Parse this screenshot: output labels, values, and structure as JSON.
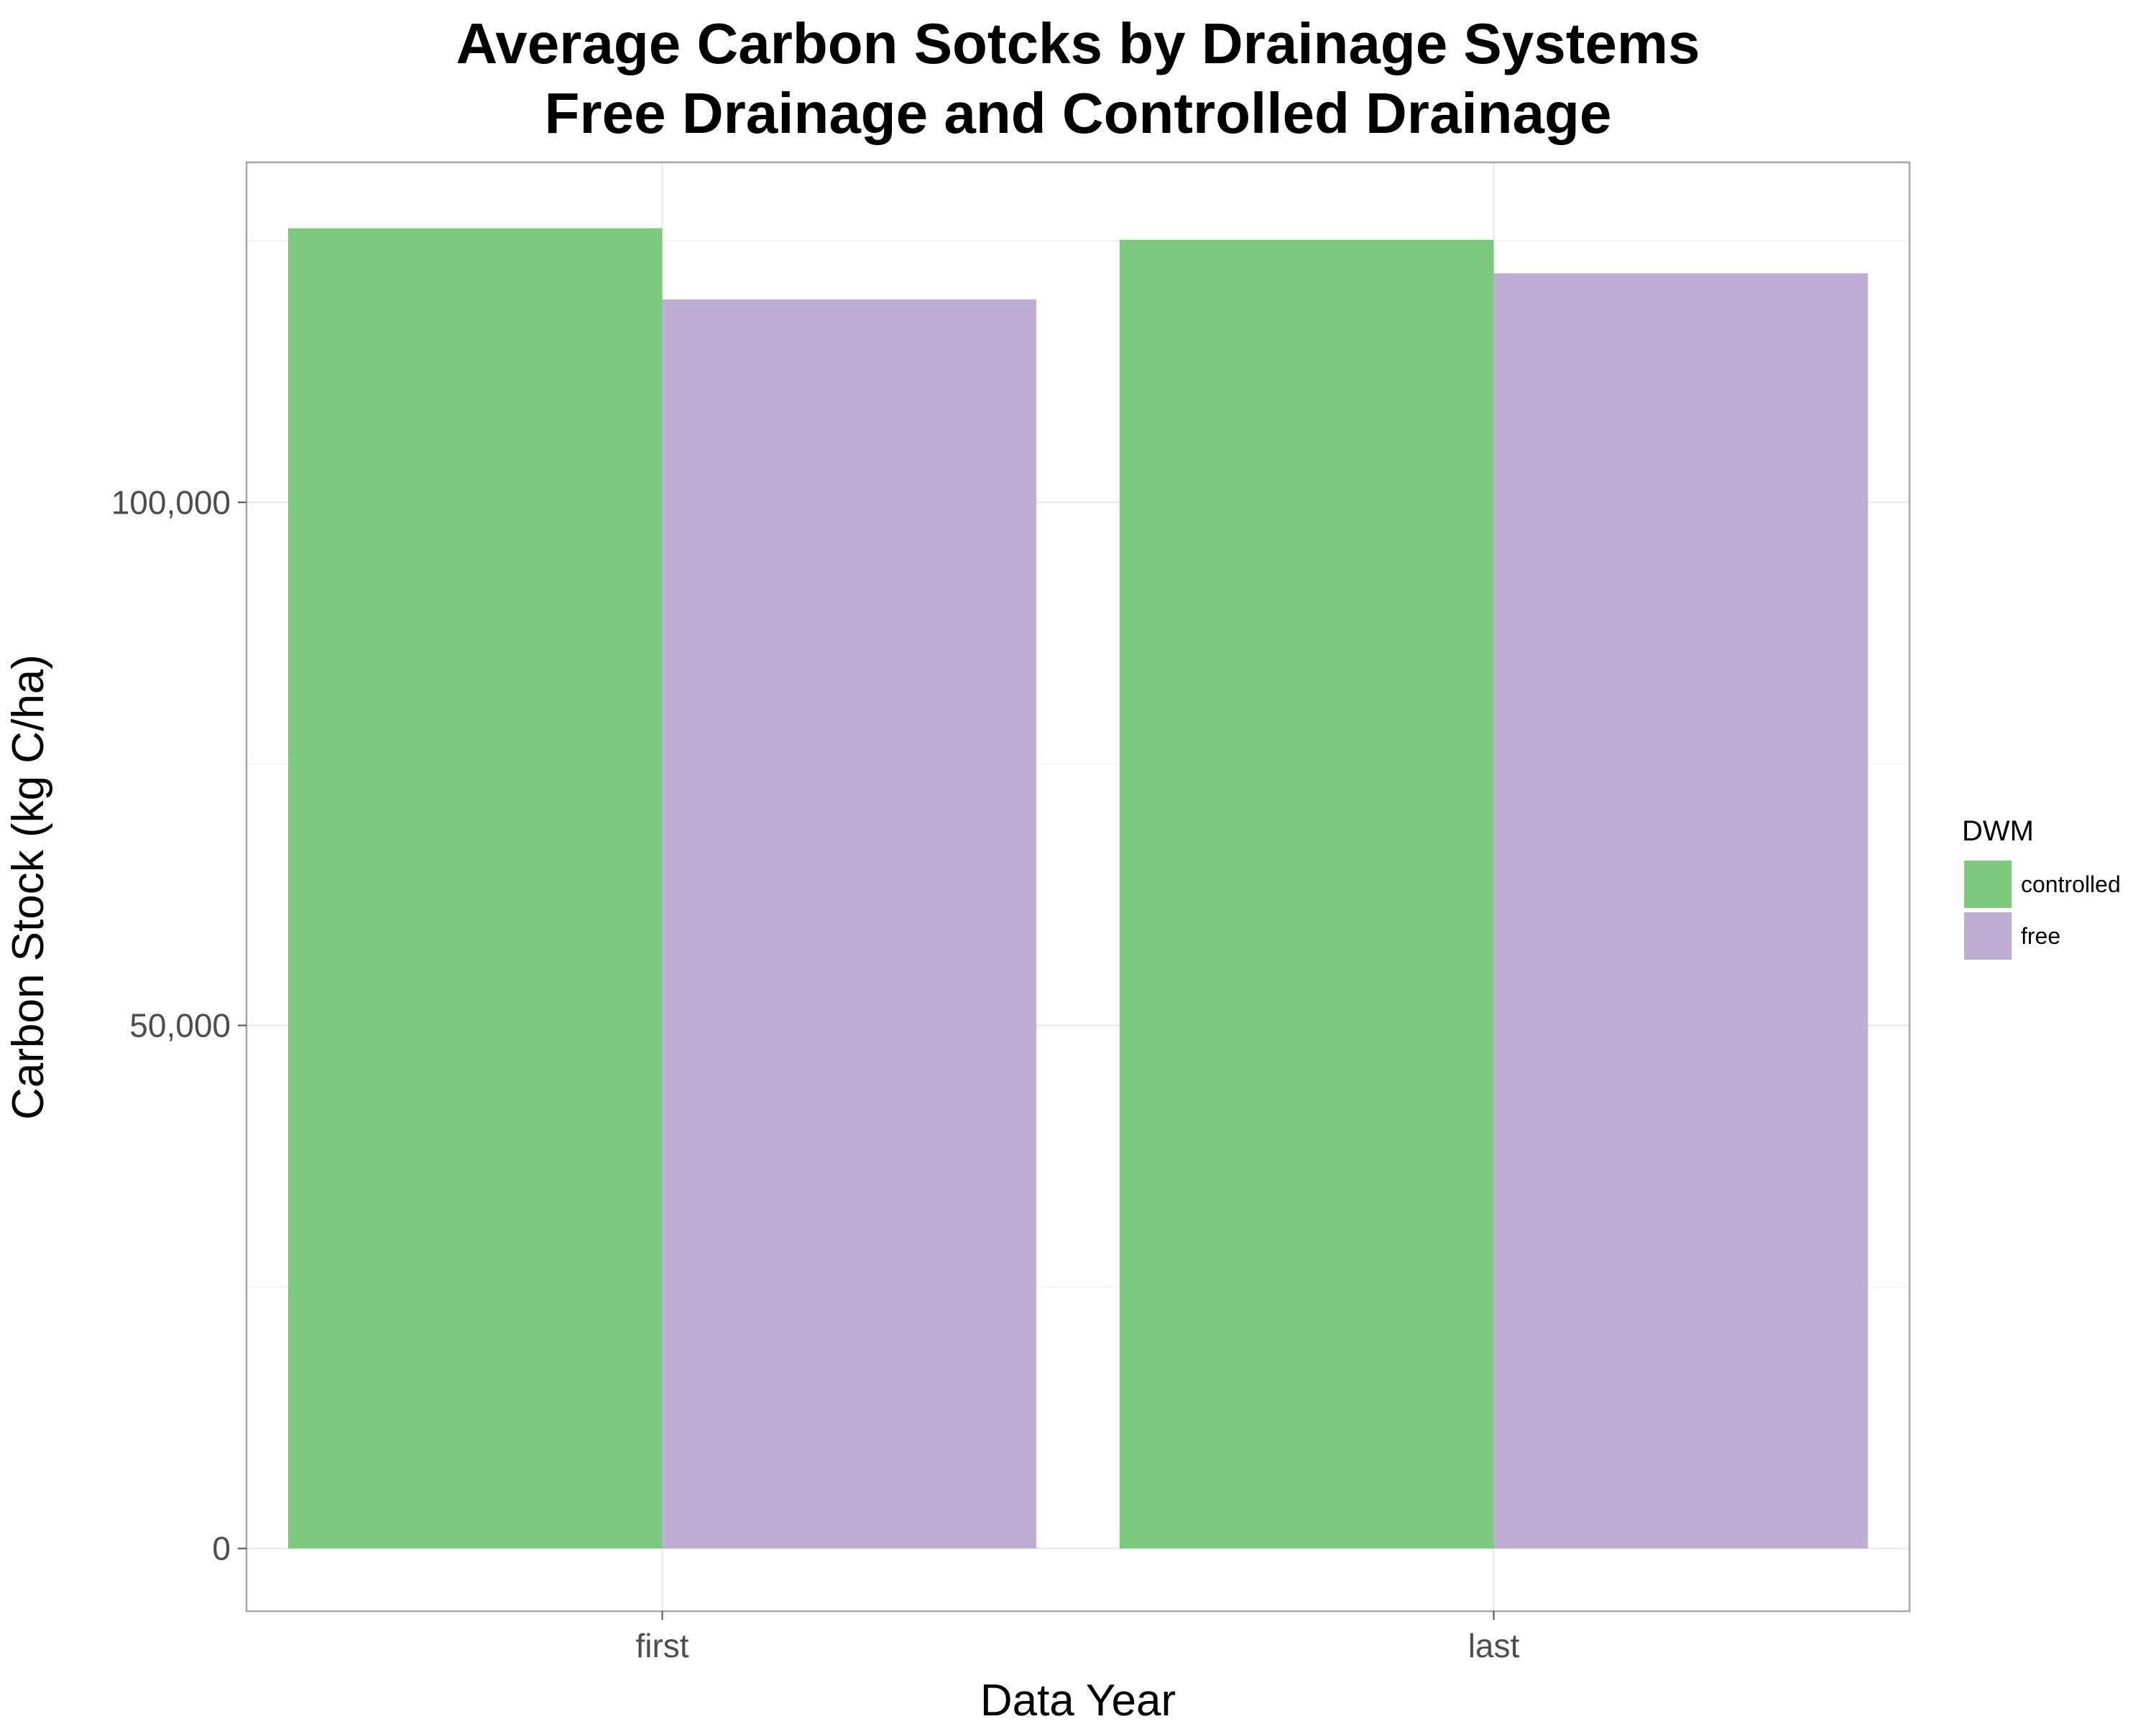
{
  "chart_data": {
    "type": "bar",
    "title": "Average Carbon Sotcks by Drainage Systems",
    "subtitle": "Free Drainage and Controlled Drainage",
    "xlabel": "Data Year",
    "ylabel": "Carbon Stock (kg C/ha)",
    "categories": [
      "first",
      "last"
    ],
    "series": [
      {
        "name": "controlled",
        "color": "#7fc97f",
        "values": [
          126200,
          125100
        ]
      },
      {
        "name": "free",
        "color": "#beaed4",
        "values": [
          119400,
          121900
        ]
      }
    ],
    "ylim": [
      -6000,
      132500
    ],
    "y_ticks": [
      0,
      50000,
      100000
    ],
    "y_tick_labels": [
      "0",
      "50,000",
      "100,000"
    ],
    "y_minor_ticks": [
      25000,
      75000,
      125000
    ],
    "grid": true,
    "legend": {
      "title": "DWM",
      "position": "right"
    }
  }
}
